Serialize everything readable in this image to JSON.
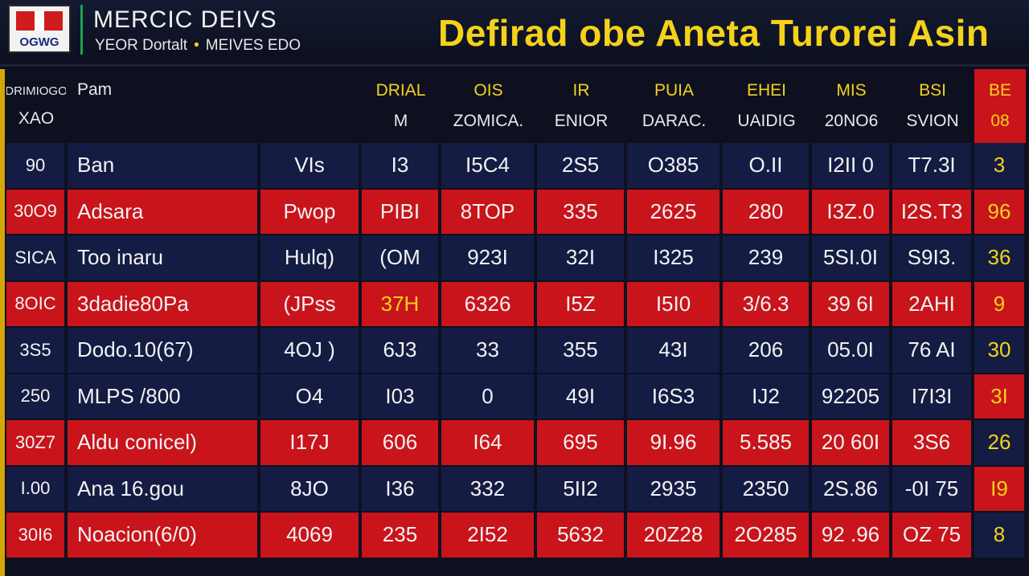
{
  "header": {
    "logo_text": "OGWG",
    "brand_title": "MERCIC DEIVS",
    "brand_left": "YEOR Dortalt",
    "brand_right": "MEIVES EDO",
    "headline": "Defirad obe Aneta Turorei Asin"
  },
  "table": {
    "headers": [
      {
        "top": "DRIMIOGO",
        "bottom": ""
      },
      {
        "top": "",
        "bottom": "Pam"
      },
      {
        "top": "",
        "bottom": ""
      },
      {
        "top": "DRIAL",
        "bottom": "M"
      },
      {
        "top": "OIS",
        "bottom": "ZOMICA."
      },
      {
        "top": "IR",
        "bottom": "ENIOR"
      },
      {
        "top": "PUIA",
        "bottom": "DARAC."
      },
      {
        "top": "EHEI",
        "bottom": "UAIDIG"
      },
      {
        "top": "MIS",
        "bottom": "20NO6"
      },
      {
        "top": "BSI",
        "bottom": "SVION"
      },
      {
        "top": "BE",
        "bottom": "08"
      }
    ],
    "header_left_top": "DRIMIOGO",
    "header_left_bottom": "XAO",
    "rows": [
      {
        "style": "navy",
        "cells": [
          "90",
          "Ban",
          "VIs",
          "I3",
          "I5C4",
          "2S5",
          "O385",
          "O.II",
          "I2II 0",
          "T7.3I",
          "3"
        ]
      },
      {
        "style": "red",
        "cells": [
          "30O9",
          "Adsara",
          "Pwop",
          "PIBI",
          "8TOP",
          "335",
          "2625",
          "280",
          "I3Z.0",
          "I2S.T3",
          "96"
        ]
      },
      {
        "style": "navy",
        "cells": [
          "SICA",
          "Too inaru",
          "Hulq)",
          "(OM",
          "923I",
          "32I",
          "I325",
          "239",
          "5SI.0I",
          "S9I3.",
          "36"
        ]
      },
      {
        "style": "red",
        "cells": [
          "8OIC",
          "3dadie80Pa",
          "(JPss",
          "37H",
          "6326",
          "I5Z",
          "I5I0",
          "3/6.3",
          "39 6I",
          "2AHI",
          "9"
        ]
      },
      {
        "style": "navy",
        "cells": [
          "3S5",
          "Dodo.10(67)",
          "4OJ )",
          "6J3",
          "33",
          "355",
          "43I",
          "206",
          "05.0I",
          "76 AI",
          "30"
        ]
      },
      {
        "style": "navy",
        "cells": [
          "250",
          "MLPS /800",
          "O4",
          "I03",
          "0",
          "49I",
          "I6S3",
          "IJ2",
          "92205",
          "I7I3I",
          "3I"
        ]
      },
      {
        "style": "red",
        "cells": [
          "30Z7",
          "Aldu conicel)",
          "I17J",
          "606",
          "I64",
          "695",
          "9I.96",
          "5.585",
          "20 60I",
          "3S6",
          "26"
        ]
      },
      {
        "style": "navy",
        "cells": [
          "I.00",
          "Ana 16.gou",
          "8JO",
          "I36",
          "332",
          "5II2",
          "2935",
          "2350",
          "2S.86",
          "-0I 75",
          "I9"
        ]
      },
      {
        "style": "red",
        "cells": [
          "30I6",
          "Noacion(6/0)",
          "4069",
          "235",
          "2I52",
          "5632",
          "20Z28",
          "2O285",
          "92 .96",
          "OZ 75",
          "8"
        ]
      }
    ]
  }
}
